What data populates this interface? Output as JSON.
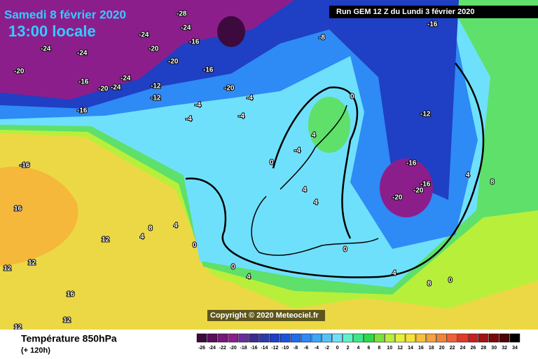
{
  "header": {
    "date": "Samedi 8 février 2020",
    "time": "13:00 locale",
    "run": "Run GEM 12 Z du Lundi 3 février 2020"
  },
  "copyright": "Copyright © 2020 Meteociel.fr",
  "footer": {
    "title": "Température 850hPa",
    "lead": "(+ 120h)"
  },
  "legend": {
    "ticks": [
      -26,
      -24,
      -22,
      -20,
      -18,
      -16,
      -14,
      -12,
      -10,
      -8,
      -6,
      -4,
      -2,
      0,
      2,
      4,
      6,
      8,
      10,
      12,
      14,
      16,
      18,
      20,
      22,
      24,
      26,
      28,
      30,
      32,
      34
    ],
    "colors": [
      "#3d0a3d",
      "#5a0f5a",
      "#761a76",
      "#8c1e8c",
      "#6b2b9e",
      "#3c2a8c",
      "#2b3aa8",
      "#1f3fc4",
      "#1a52e0",
      "#1f6cf0",
      "#2e8af5",
      "#3fa5f7",
      "#55c3fa",
      "#6fe0fb",
      "#5ff2c8",
      "#3ae88a",
      "#2fd84a",
      "#7ae23a",
      "#b8ef3a",
      "#e6f03a",
      "#f5e23a",
      "#f7c23a",
      "#f7a23a",
      "#f5823a",
      "#f0603a",
      "#e03a2a",
      "#c81e1e",
      "#a01414",
      "#7a0a0a",
      "#4a0505",
      "#000000"
    ]
  },
  "map_labels": [
    -28,
    -24,
    -24,
    -24,
    -16,
    -20,
    -24,
    -20,
    -20,
    -24,
    -8,
    -16,
    -12,
    -16,
    -20,
    -24,
    -16,
    -20,
    -4,
    -12,
    -4,
    -4,
    -4,
    -4,
    0,
    0,
    -12,
    -16,
    -20,
    -20,
    -16,
    4,
    4,
    4,
    0,
    0,
    0,
    4,
    4,
    8,
    8,
    8,
    12,
    12,
    12,
    16,
    16,
    -16,
    -16,
    12,
    12,
    4,
    4,
    4,
    0
  ]
}
